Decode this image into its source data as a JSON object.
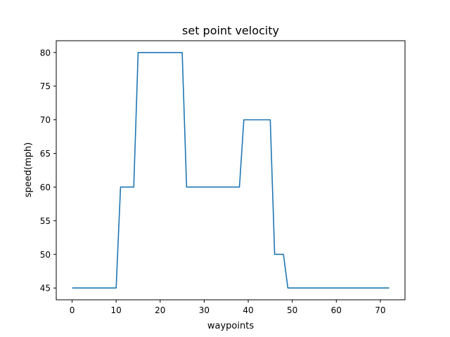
{
  "chart_data": {
    "type": "line",
    "title": "set point velocity",
    "xlabel": "waypoints",
    "ylabel": "speed(mph)",
    "xlim": [
      -3.6,
      75.6
    ],
    "ylim": [
      43.25,
      81.75
    ],
    "xticks": [
      0,
      10,
      20,
      30,
      40,
      50,
      60,
      70
    ],
    "yticks": [
      45,
      50,
      55,
      60,
      65,
      70,
      75,
      80
    ],
    "grid": false,
    "series": [
      {
        "color": "#1f77b4",
        "x": [
          0,
          1,
          2,
          3,
          4,
          5,
          6,
          7,
          8,
          9,
          10,
          11,
          12,
          13,
          14,
          15,
          16,
          17,
          18,
          19,
          20,
          21,
          22,
          23,
          24,
          25,
          26,
          27,
          28,
          29,
          30,
          31,
          32,
          33,
          34,
          35,
          36,
          37,
          38,
          39,
          40,
          41,
          42,
          43,
          44,
          45,
          46,
          47,
          48,
          49,
          50,
          51,
          52,
          53,
          54,
          55,
          56,
          57,
          58,
          59,
          60,
          61,
          62,
          63,
          64,
          65,
          66,
          67,
          68,
          69,
          70,
          71,
          72
        ],
        "y": [
          45,
          45,
          45,
          45,
          45,
          45,
          45,
          45,
          45,
          45,
          45,
          60,
          60,
          60,
          60,
          80,
          80,
          80,
          80,
          80,
          80,
          80,
          80,
          80,
          80,
          80,
          60,
          60,
          60,
          60,
          60,
          60,
          60,
          60,
          60,
          60,
          60,
          60,
          60,
          70,
          70,
          70,
          70,
          70,
          70,
          70,
          50,
          50,
          50,
          45,
          45,
          45,
          45,
          45,
          45,
          45,
          45,
          45,
          45,
          45,
          45,
          45,
          45,
          45,
          45,
          45,
          45,
          45,
          45,
          45,
          45,
          45,
          45
        ]
      }
    ]
  }
}
